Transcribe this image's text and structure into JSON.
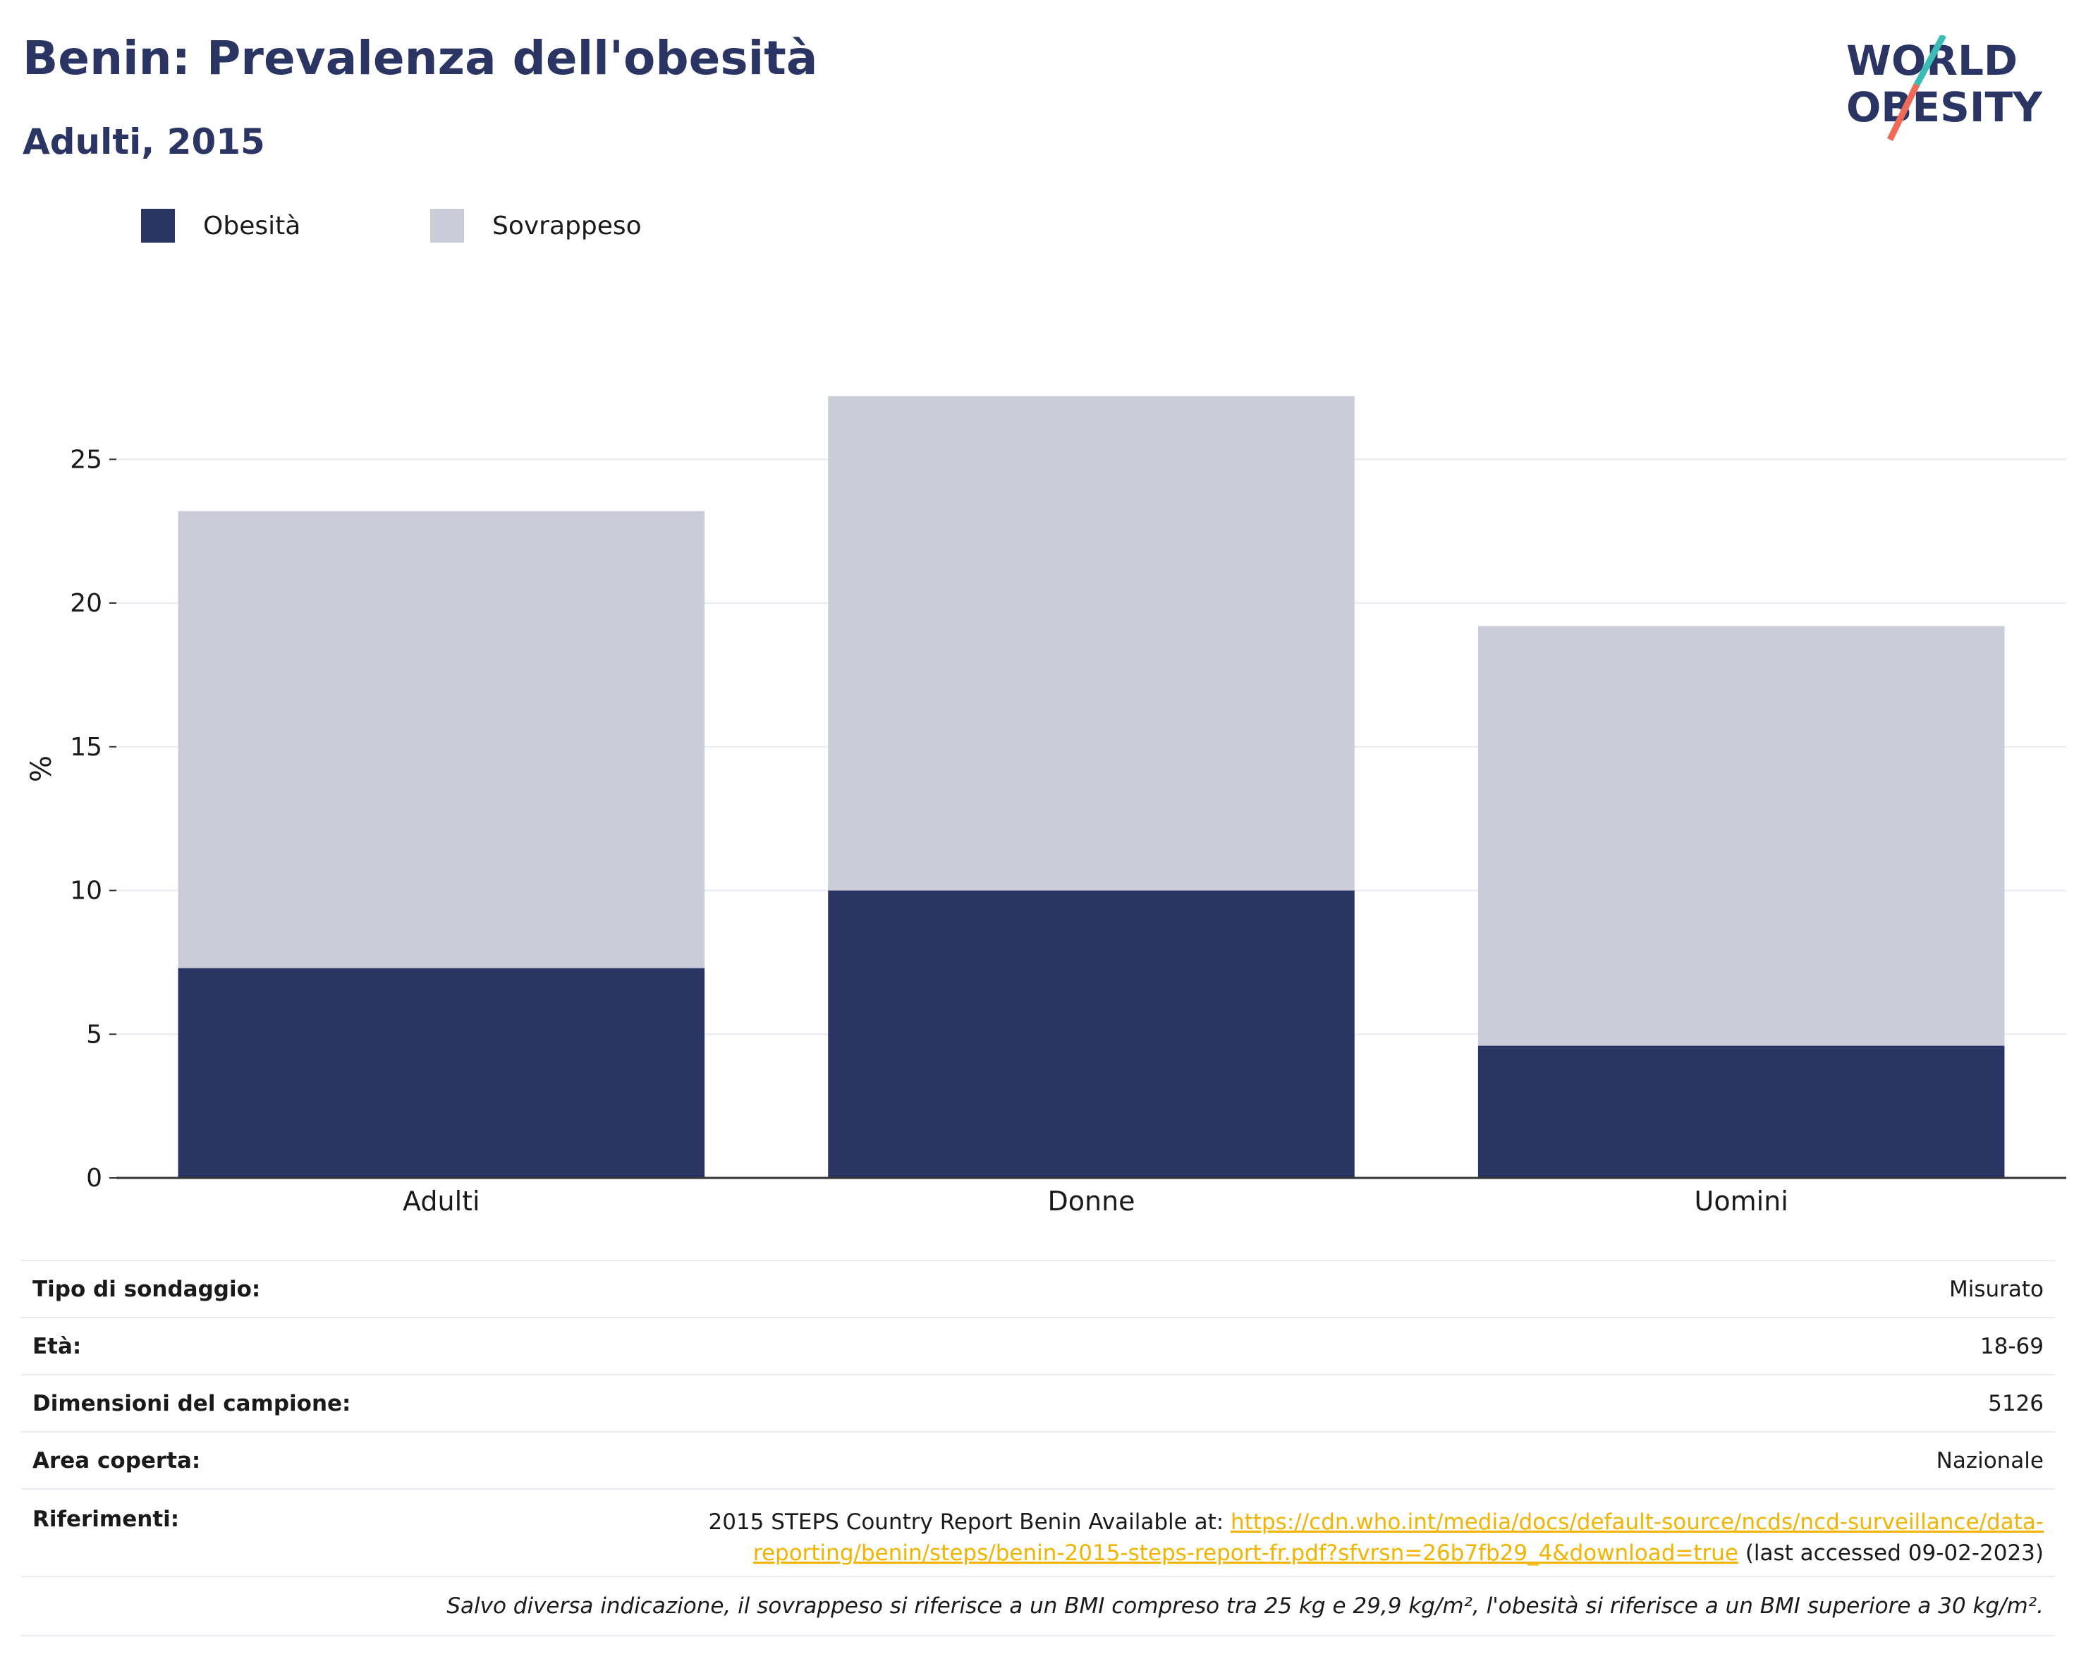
{
  "header": {
    "title": "Benin: Prevalenza dell'obesità",
    "subtitle": "Adulti, 2015"
  },
  "logo": {
    "line1": "WORLD",
    "line2": "OBESITY",
    "colors": {
      "text": "#2b3563",
      "slash_top": "#3bbcb6",
      "slash_bottom": "#ee6b58"
    }
  },
  "colors": {
    "obesity": "#2b3563",
    "overweight": "#cacdd8",
    "grid": "#e9ebf3",
    "axis": "#333333",
    "link": "#f2b400"
  },
  "chart_data": {
    "type": "bar",
    "stacked": true,
    "categories": [
      "Adulti",
      "Donne",
      "Uomini"
    ],
    "series": [
      {
        "name": "Obesità",
        "values": [
          7.3,
          10.0,
          4.6
        ]
      },
      {
        "name": "Sovrappeso",
        "values": [
          15.9,
          17.2,
          14.6
        ]
      }
    ],
    "ylabel": "%",
    "xlabel": "",
    "ylim": [
      0,
      28
    ],
    "yticks": [
      0,
      5,
      10,
      15,
      20,
      25
    ],
    "grid": true,
    "legend_position": "top-left"
  },
  "info": {
    "rows": [
      {
        "label": "Tipo di sondaggio:",
        "value": "Misurato"
      },
      {
        "label": "Età:",
        "value": "18-69"
      },
      {
        "label": "Dimensioni del campione:",
        "value": "5126"
      },
      {
        "label": "Area coperta:",
        "value": "Nazionale"
      }
    ],
    "references": {
      "label": "Riferimenti:",
      "text_before": "2015 STEPS Country Report Benin Available at: ",
      "link": "https://cdn.who.int/media/docs/default-source/ncds/ncd-surveillance/data-reporting/benin/steps/benin-2015-steps-report-fr.pdf?sfvrsn=26b7fb29_4&download=true",
      "text_after": " (last accessed 09-02-2023)"
    },
    "note": "Salvo diversa indicazione, il sovrappeso si riferisce a un BMI compreso tra 25 kg e 29,9 kg/m², l'obesità si riferisce a un BMI superiore a 30 kg/m²."
  }
}
